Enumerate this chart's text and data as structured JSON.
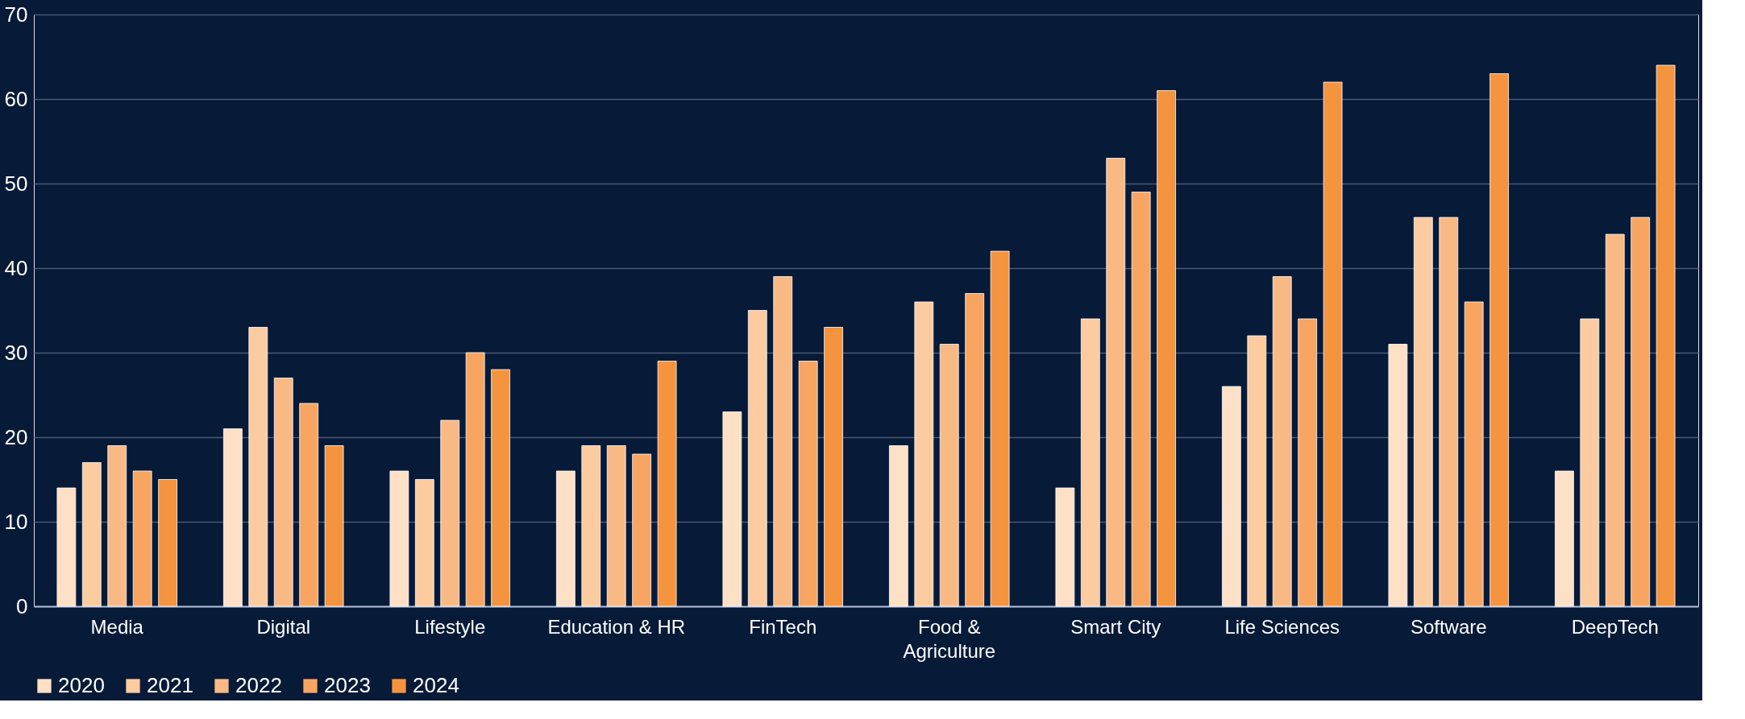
{
  "chart_data": {
    "type": "bar",
    "categories": [
      "Media",
      "Digital",
      "Lifestyle",
      "Education & HR",
      "FinTech",
      "Food & Agriculture",
      "Smart City",
      "Life Sciences",
      "Software",
      "DeepTech"
    ],
    "series": [
      {
        "name": "2020",
        "color": "#fde0c5",
        "values": [
          14,
          21,
          16,
          16,
          23,
          19,
          14,
          26,
          31,
          16
        ]
      },
      {
        "name": "2021",
        "color": "#fccba0",
        "values": [
          17,
          33,
          15,
          19,
          35,
          36,
          34,
          32,
          46,
          34
        ]
      },
      {
        "name": "2022",
        "color": "#f9b985",
        "values": [
          19,
          27,
          22,
          19,
          39,
          31,
          53,
          39,
          46,
          44
        ]
      },
      {
        "name": "2023",
        "color": "#f7a561",
        "values": [
          16,
          24,
          30,
          18,
          29,
          37,
          49,
          34,
          36,
          46
        ]
      },
      {
        "name": "2024",
        "color": "#f4943f",
        "values": [
          15,
          19,
          28,
          29,
          33,
          42,
          61,
          62,
          63,
          64
        ]
      }
    ],
    "ylim": [
      0,
      70
    ],
    "yticks": [
      0,
      10,
      20,
      30,
      40,
      50,
      60,
      70
    ],
    "grid": "y",
    "legend": "bottom"
  }
}
